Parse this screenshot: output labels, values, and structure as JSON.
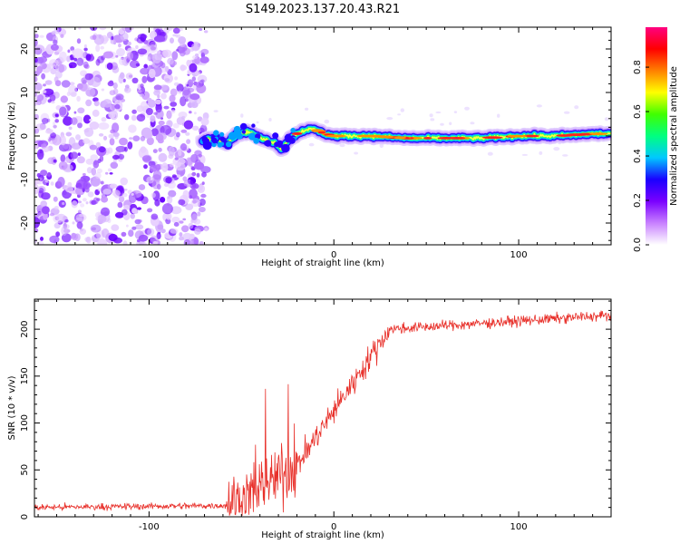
{
  "title": "S149.2023.137.20.43.R21",
  "chart_data": [
    {
      "type": "heatmap",
      "xlabel": "Height of straight line (km)",
      "ylabel": "Frequency (Hz)",
      "xlim": [
        -162,
        150
      ],
      "ylim": [
        -25,
        25
      ],
      "x_ticks": [
        -100,
        0,
        100
      ],
      "y_ticks": [
        -20,
        -10,
        0,
        10,
        20
      ],
      "noise_region": {
        "x_range": [
          -162,
          -71
        ],
        "y_range": [
          -25,
          25
        ]
      },
      "signal_track": {
        "x": [
          -71,
          -64,
          -58,
          -52,
          -46,
          -40,
          -36,
          -32,
          -28,
          -25,
          -20,
          -15,
          -10,
          -5,
          0,
          10,
          20,
          40,
          60,
          80,
          100,
          120,
          140,
          150
        ],
        "y": [
          -1,
          -0.5,
          -1.5,
          0.5,
          1,
          -0.5,
          -1,
          -1.5,
          -3,
          -1,
          0.5,
          1.5,
          1.5,
          0.5,
          0,
          0,
          0,
          -0.5,
          -0.5,
          -0.5,
          0,
          0,
          0.5,
          0.5
        ]
      },
      "colorbar": {
        "label": "Normalized spectral amplitude",
        "range": [
          0,
          1
        ],
        "ticks": [
          "0.0",
          "0.2",
          "0.4",
          "0.6",
          "0.8"
        ],
        "colors": [
          "#ffffff",
          "#c880ff",
          "#7a00ff",
          "#1a00ff",
          "#00c8ff",
          "#00ff80",
          "#40ff00",
          "#ffff00",
          "#ff8000",
          "#ff0000",
          "#ff0080"
        ]
      }
    },
    {
      "type": "line",
      "xlabel": "Height of straight line (km)",
      "ylabel": "SNR (10 * v/v)",
      "xlim": [
        -162,
        150
      ],
      "ylim": [
        0,
        232
      ],
      "x_ticks": [
        -100,
        0,
        100
      ],
      "y_ticks": [
        0,
        50,
        100,
        150,
        200
      ],
      "color": "#e8302a",
      "segments": [
        {
          "x": [
            -162,
            -58
          ],
          "mean": [
            10,
            12
          ],
          "noise": 5
        },
        {
          "x": [
            -58,
            -20
          ],
          "mean": [
            12,
            55
          ],
          "noise": 45
        },
        {
          "x": [
            -20,
            30
          ],
          "mean": [
            55,
            200
          ],
          "noise": 20
        },
        {
          "x": [
            30,
            150
          ],
          "mean": [
            200,
            215
          ],
          "noise": 8
        }
      ]
    }
  ]
}
